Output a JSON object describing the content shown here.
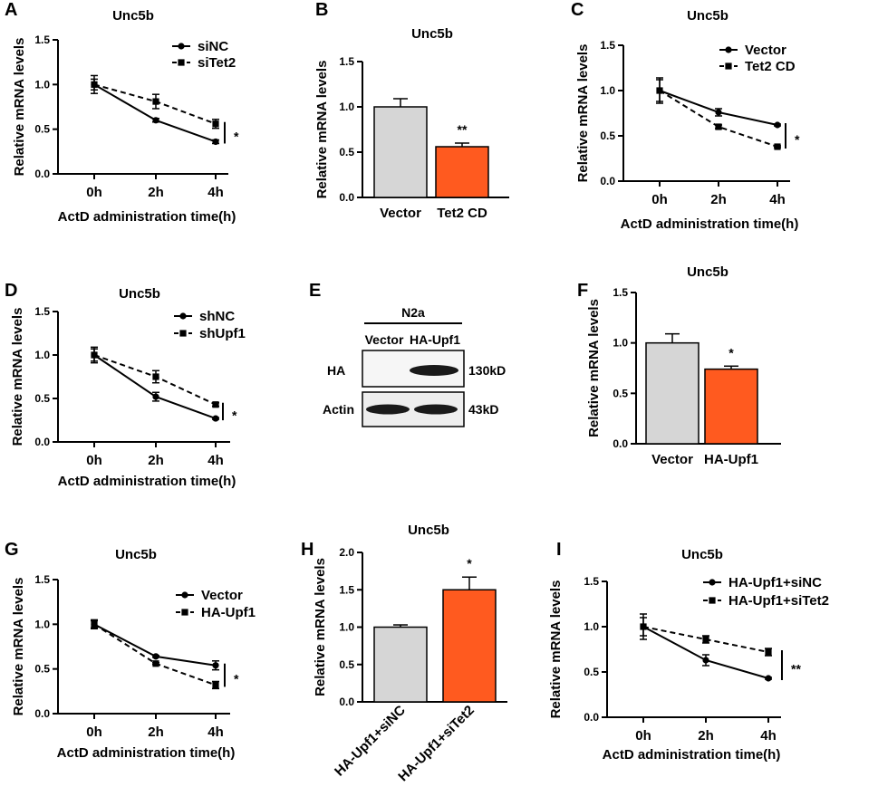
{
  "chart_data": [
    {
      "letter": "A",
      "type": "line",
      "title": "Unc5b",
      "xlabel": "ActD administration time(h)",
      "ylabel": "Relative mRNA levels",
      "categories": [
        "0h",
        "2h",
        "4h"
      ],
      "ylim": [
        0,
        1.5
      ],
      "yticks": [
        "0.0",
        "0.5",
        "1.0",
        "1.5"
      ],
      "series": [
        {
          "name": "siNC",
          "values": [
            1.0,
            0.6,
            0.36
          ],
          "errors": [
            0.06,
            0.02,
            0.02
          ],
          "style": "solid",
          "marker": "circle"
        },
        {
          "name": "siTet2",
          "values": [
            1.0,
            0.81,
            0.56
          ],
          "errors": [
            0.1,
            0.08,
            0.05
          ],
          "style": "dashed",
          "marker": "square"
        }
      ],
      "significance": "*"
    },
    {
      "letter": "B",
      "type": "bar",
      "title": "Unc5b",
      "xlabel": "",
      "ylabel": "Relative mRNA levels",
      "categories": [
        "Vector",
        "Tet2 CD"
      ],
      "values": [
        1.0,
        0.56
      ],
      "errors": [
        0.09,
        0.04
      ],
      "colors": [
        "#d6d6d6",
        "#ff5a1f"
      ],
      "ylim": [
        0,
        1.5
      ],
      "yticks": [
        "0.0",
        "0.5",
        "1.0",
        "1.5"
      ],
      "significance": "**"
    },
    {
      "letter": "C",
      "type": "line",
      "title": "Unc5b",
      "xlabel": "ActD administration time(h)",
      "ylabel": "Relative mRNA levels",
      "categories": [
        "0h",
        "2h",
        "4h"
      ],
      "ylim": [
        0,
        1.5
      ],
      "yticks": [
        "0.0",
        "0.5",
        "1.0",
        "1.5"
      ],
      "series": [
        {
          "name": "Vector",
          "values": [
            1.0,
            0.76,
            0.62
          ],
          "errors": [
            0.12,
            0.04,
            0.01
          ],
          "style": "solid",
          "marker": "circle"
        },
        {
          "name": "Tet2 CD",
          "values": [
            1.0,
            0.6,
            0.38
          ],
          "errors": [
            0.14,
            0.02,
            0.01
          ],
          "style": "dashed",
          "marker": "square"
        }
      ],
      "significance": "*"
    },
    {
      "letter": "D",
      "type": "line",
      "title": "Unc5b",
      "xlabel": "ActD administration time(h)",
      "ylabel": "Relative mRNA levels",
      "categories": [
        "0h",
        "2h",
        "4h"
      ],
      "ylim": [
        0,
        1.5
      ],
      "yticks": [
        "0.0",
        "0.5",
        "1.0",
        "1.5"
      ],
      "series": [
        {
          "name": "shNC",
          "values": [
            1.0,
            0.52,
            0.27
          ],
          "errors": [
            0.07,
            0.05,
            0.01
          ],
          "style": "solid",
          "marker": "circle"
        },
        {
          "name": "shUpf1",
          "values": [
            1.0,
            0.75,
            0.43
          ],
          "errors": [
            0.09,
            0.07,
            0.02
          ],
          "style": "dashed",
          "marker": "square"
        }
      ],
      "significance": "*"
    },
    {
      "letter": "F",
      "type": "bar",
      "title": "Unc5b",
      "xlabel": "",
      "ylabel": "Relative mRNA levels",
      "categories": [
        "Vector",
        "HA-Upf1"
      ],
      "values": [
        1.0,
        0.74
      ],
      "errors": [
        0.09,
        0.03
      ],
      "colors": [
        "#d6d6d6",
        "#ff5a1f"
      ],
      "ylim": [
        0,
        1.5
      ],
      "yticks": [
        "0.0",
        "0.5",
        "1.0",
        "1.5"
      ],
      "significance": "*"
    },
    {
      "letter": "G",
      "type": "line",
      "title": "Unc5b",
      "xlabel": "ActD administration time(h)",
      "ylabel": "Relative mRNA levels",
      "categories": [
        "0h",
        "2h",
        "4h"
      ],
      "ylim": [
        0,
        1.5
      ],
      "yticks": [
        "0.0",
        "0.5",
        "1.0",
        "1.5"
      ],
      "series": [
        {
          "name": "Vector",
          "values": [
            1.0,
            0.64,
            0.54
          ],
          "errors": [
            0.05,
            0.01,
            0.05
          ],
          "style": "solid",
          "marker": "circle"
        },
        {
          "name": "HA-Upf1",
          "values": [
            1.0,
            0.56,
            0.32
          ],
          "errors": [
            0.04,
            0.01,
            0.04
          ],
          "style": "dashed",
          "marker": "square"
        }
      ],
      "significance": "*"
    },
    {
      "letter": "H",
      "type": "bar",
      "title": "Unc5b",
      "xlabel": "",
      "ylabel": "Relative mRNA levels",
      "categories": [
        "HA-Upf1+siNC",
        "HA-Upf1+siTet2"
      ],
      "values": [
        1.0,
        1.5
      ],
      "errors": [
        0.03,
        0.17
      ],
      "colors": [
        "#d6d6d6",
        "#ff5a1f"
      ],
      "ylim": [
        0,
        2.0
      ],
      "yticks": [
        "0.0",
        "0.5",
        "1.0",
        "1.5",
        "2.0"
      ],
      "significance": "*"
    },
    {
      "letter": "I",
      "type": "line",
      "title": "Unc5b",
      "xlabel": "ActD administration time(h)",
      "ylabel": "Relative mRNA levels",
      "categories": [
        "0h",
        "2h",
        "4h"
      ],
      "ylim": [
        0,
        1.5
      ],
      "yticks": [
        "0.0",
        "0.5",
        "1.0",
        "1.5"
      ],
      "series": [
        {
          "name": "HA-Upf1+siNC",
          "values": [
            1.0,
            0.63,
            0.43
          ],
          "errors": [
            0.14,
            0.06,
            0.01
          ],
          "style": "solid",
          "marker": "circle"
        },
        {
          "name": "HA-Upf1+siTet2",
          "values": [
            1.0,
            0.86,
            0.72
          ],
          "errors": [
            0.1,
            0.04,
            0.04
          ],
          "style": "dashed",
          "marker": "square"
        }
      ],
      "significance": "**"
    }
  ],
  "western_blot": {
    "letter": "E",
    "cell_line": "N2a",
    "lanes": [
      "Vector",
      "HA-Upf1"
    ],
    "rows": [
      {
        "label": "HA",
        "size": "130kD"
      },
      {
        "label": "Actin",
        "size": "43kD"
      }
    ]
  },
  "colors": {
    "control_bar": "#d6d6d6",
    "treatment_bar": "#ff5a1f",
    "ink": "#000000"
  }
}
